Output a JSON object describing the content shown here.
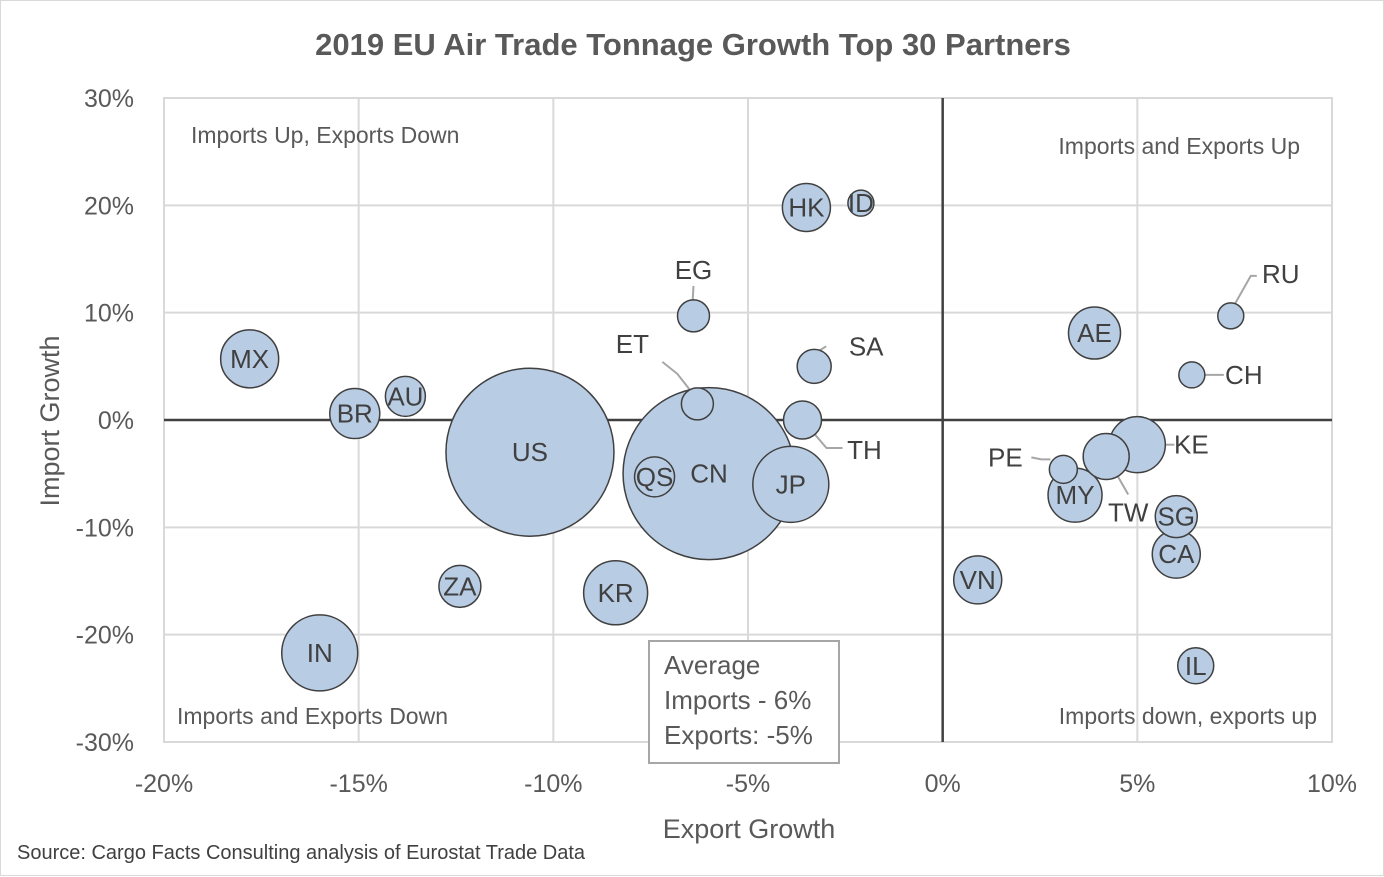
{
  "chart_data": {
    "type": "bubble",
    "title": "2019 EU Air Trade Tonnage Growth Top 30 Partners",
    "xlabel": "Export Growth",
    "ylabel": "Import Growth",
    "xlim": [
      -20,
      10
    ],
    "ylim": [
      -30,
      30
    ],
    "x_ticks": [
      -20,
      -15,
      -10,
      -5,
      0,
      5,
      10
    ],
    "y_ticks": [
      -30,
      -20,
      -10,
      0,
      10,
      20,
      30
    ],
    "x_tick_labels": [
      "-20%",
      "-15%",
      "-10%",
      "-5%",
      "0%",
      "5%",
      "10%"
    ],
    "y_tick_labels": [
      "-30%",
      "-20%",
      "-10%",
      "0%",
      "10%",
      "20%",
      "30%"
    ],
    "grid": true,
    "bubble_color": "#b8cce4",
    "bubble_edge_color": "#404040",
    "points": [
      {
        "label": "US",
        "x": -10.6,
        "y": -3.0,
        "size": 84
      },
      {
        "label": "CN",
        "x": -6.0,
        "y": -5.0,
        "size": 86
      },
      {
        "label": "JP",
        "x": -3.9,
        "y": -6.0,
        "size": 38
      },
      {
        "label": "QS",
        "x": -7.4,
        "y": -5.3,
        "size": 20
      },
      {
        "label": "KR",
        "x": -8.4,
        "y": -16.1,
        "size": 32
      },
      {
        "label": "IN",
        "x": -16.0,
        "y": -21.7,
        "size": 38
      },
      {
        "label": "ZA",
        "x": -12.4,
        "y": -15.5,
        "size": 21
      },
      {
        "label": "MX",
        "x": -17.8,
        "y": 5.7,
        "size": 29
      },
      {
        "label": "BR",
        "x": -15.1,
        "y": 0.6,
        "size": 25
      },
      {
        "label": "AU",
        "x": -13.8,
        "y": 2.2,
        "size": 20
      },
      {
        "label": "EG",
        "x": -6.4,
        "y": 9.7,
        "size": 16
      },
      {
        "label": "ET",
        "x": -6.3,
        "y": 1.5,
        "size": 16
      },
      {
        "label": "HK",
        "x": -3.5,
        "y": 19.8,
        "size": 24
      },
      {
        "label": "ID",
        "x": -2.1,
        "y": 20.2,
        "size": 13
      },
      {
        "label": "SA",
        "x": -3.3,
        "y": 5.0,
        "size": 17
      },
      {
        "label": "TH",
        "x": -3.6,
        "y": 0.0,
        "size": 19
      },
      {
        "label": "AE",
        "x": 3.9,
        "y": 8.1,
        "size": 26
      },
      {
        "label": "RU",
        "x": 7.4,
        "y": 9.7,
        "size": 13
      },
      {
        "label": "CH",
        "x": 6.4,
        "y": 4.2,
        "size": 13
      },
      {
        "label": "KE",
        "x": 5.0,
        "y": -2.3,
        "size": 28
      },
      {
        "label": "PE",
        "x": 3.1,
        "y": -4.6,
        "size": 14
      },
      {
        "label": "TW",
        "x": 4.2,
        "y": -3.4,
        "size": 23
      },
      {
        "label": "MY",
        "x": 3.4,
        "y": -7.0,
        "size": 27
      },
      {
        "label": "SG",
        "x": 6.0,
        "y": -9.0,
        "size": 21
      },
      {
        "label": "CA",
        "x": 6.0,
        "y": -12.5,
        "size": 24
      },
      {
        "label": "VN",
        "x": 0.9,
        "y": -14.9,
        "size": 24
      },
      {
        "label": "IL",
        "x": 6.5,
        "y": -22.9,
        "size": 18
      }
    ],
    "annotations": {
      "top_left": "Imports Up, Exports Down",
      "top_right": "Imports and Exports Up",
      "bottom_left": "Imports and Exports Down",
      "bottom_right": "Imports down, exports up"
    },
    "average_box": [
      "Average",
      "Imports - 6%",
      "Exports: -5%"
    ],
    "source": "Source: Cargo Facts Consulting analysis of Eurostat Trade Data"
  }
}
